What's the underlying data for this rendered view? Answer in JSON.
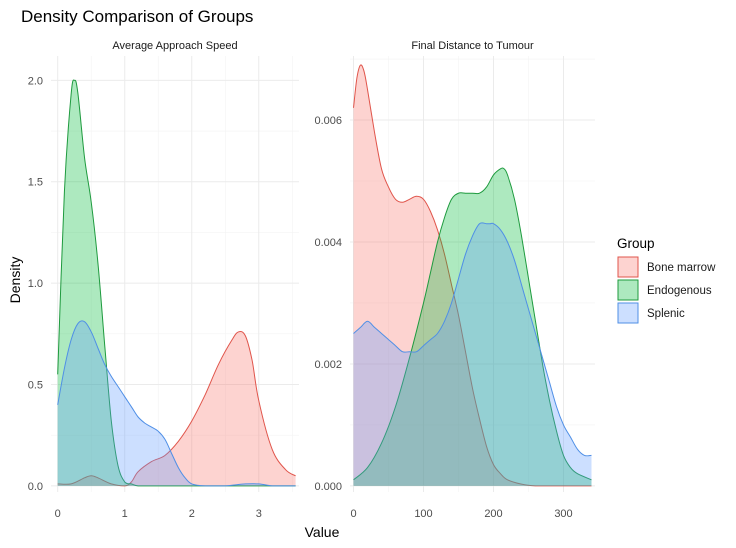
{
  "chart_data": {
    "type": "area",
    "title": "Density Comparison of Groups",
    "xlabel": "Value",
    "ylabel": "Density",
    "legend": {
      "title": "Group",
      "position": "right",
      "entries": [
        {
          "name": "Bone marrow",
          "fill": "#f8766d",
          "line": "#e0554b"
        },
        {
          "name": "Endogenous",
          "fill": "#00ba38",
          "line": "#1e9a3e"
        },
        {
          "name": "Splenic",
          "fill": "#619cff",
          "line": "#4f8fe6"
        }
      ]
    },
    "facets": [
      {
        "strip": "Average Approach Speed",
        "xlim": [
          -0.1,
          3.6
        ],
        "ylim": [
          -0.03,
          2.12
        ],
        "x_ticks": [
          0,
          1,
          2,
          3
        ],
        "x_tick_labels": [
          "0",
          "1",
          "2",
          "3"
        ],
        "y_ticks": [
          0,
          0.5,
          1.0,
          1.5,
          2.0
        ],
        "y_tick_labels": [
          "0.0",
          "0.5",
          "1.0",
          "1.5",
          "2.0"
        ],
        "series": [
          {
            "name": "Bone marrow",
            "x": [
              0,
              0.2,
              0.4,
              0.5,
              0.6,
              0.8,
              1.0,
              1.1,
              1.2,
              1.4,
              1.6,
              1.8,
              2.0,
              2.2,
              2.4,
              2.6,
              2.7,
              2.8,
              2.9,
              3.0,
              3.2,
              3.4,
              3.55
            ],
            "y": [
              0.01,
              0.01,
              0.04,
              0.05,
              0.04,
              0.01,
              0.0,
              0.02,
              0.07,
              0.12,
              0.15,
              0.22,
              0.32,
              0.45,
              0.6,
              0.72,
              0.76,
              0.74,
              0.62,
              0.42,
              0.18,
              0.08,
              0.05
            ]
          },
          {
            "name": "Endogenous",
            "x": [
              0,
              0.1,
              0.2,
              0.25,
              0.3,
              0.4,
              0.5,
              0.6,
              0.7,
              0.8,
              0.9,
              1.0,
              1.1,
              1.2,
              1.4,
              1.6,
              1.8,
              2.0,
              2.5,
              3.0,
              3.55
            ],
            "y": [
              0.55,
              1.45,
              1.93,
              2.0,
              1.94,
              1.62,
              1.4,
              1.1,
              0.7,
              0.32,
              0.1,
              0.02,
              0.01,
              0.0,
              0.0,
              0.0,
              0.0,
              0.0,
              0.0,
              0.0,
              0.0
            ]
          },
          {
            "name": "Splenic",
            "x": [
              0,
              0.1,
              0.2,
              0.3,
              0.4,
              0.5,
              0.6,
              0.7,
              0.8,
              0.9,
              1.0,
              1.1,
              1.2,
              1.3,
              1.4,
              1.5,
              1.6,
              1.7,
              1.8,
              1.9,
              2.0,
              2.2,
              2.5,
              2.8,
              3.0,
              3.2,
              3.4,
              3.55
            ],
            "y": [
              0.4,
              0.58,
              0.72,
              0.8,
              0.81,
              0.76,
              0.68,
              0.6,
              0.54,
              0.49,
              0.44,
              0.39,
              0.34,
              0.31,
              0.29,
              0.27,
              0.23,
              0.16,
              0.09,
              0.04,
              0.01,
              0.0,
              0.0,
              0.01,
              0.01,
              0.0,
              0.0,
              0.0
            ]
          }
        ]
      },
      {
        "strip": "Final Distance to Tumour",
        "xlim": [
          -5,
          345
        ],
        "ylim": [
          -0.0001,
          0.00705
        ],
        "x_ticks": [
          0,
          100,
          200,
          300
        ],
        "x_tick_labels": [
          "0",
          "100",
          "200",
          "300"
        ],
        "y_ticks": [
          0,
          0.002,
          0.004,
          0.006
        ],
        "y_tick_labels": [
          "0.000",
          "0.002",
          "0.004",
          "0.006"
        ],
        "series": [
          {
            "name": "Bone marrow",
            "x": [
              0,
              5,
              10,
              15,
              20,
              30,
              40,
              50,
              60,
              70,
              80,
              90,
              100,
              110,
              120,
              130,
              140,
              150,
              160,
              170,
              180,
              190,
              200,
              210,
              220,
              240,
              260,
              280,
              300,
              320,
              340
            ],
            "y": [
              0.0062,
              0.0067,
              0.0069,
              0.0068,
              0.0065,
              0.0058,
              0.0052,
              0.0049,
              0.0047,
              0.00465,
              0.0047,
              0.00475,
              0.0047,
              0.0045,
              0.0042,
              0.0038,
              0.0033,
              0.0028,
              0.0022,
              0.0016,
              0.0011,
              0.00065,
              0.00035,
              0.0002,
              0.0001,
              3e-05,
              0.0,
              0.0,
              0.0,
              0.0,
              0.0
            ]
          },
          {
            "name": "Endogenous",
            "x": [
              0,
              20,
              40,
              60,
              80,
              100,
              110,
              120,
              130,
              140,
              150,
              160,
              170,
              180,
              190,
              200,
              210,
              215,
              220,
              230,
              240,
              250,
              260,
              270,
              280,
              290,
              300,
              310,
              320,
              340
            ],
            "y": [
              0.0001,
              0.0003,
              0.0007,
              0.0013,
              0.0021,
              0.003,
              0.0035,
              0.004,
              0.0044,
              0.0047,
              0.0048,
              0.0048,
              0.0048,
              0.0048,
              0.0049,
              0.0051,
              0.0052,
              0.0052,
              0.0051,
              0.0047,
              0.0041,
              0.0034,
              0.0027,
              0.002,
              0.0014,
              0.0009,
              0.0005,
              0.0003,
              0.0002,
              0.0001
            ]
          },
          {
            "name": "Splenic",
            "x": [
              0,
              10,
              20,
              30,
              40,
              50,
              60,
              70,
              80,
              90,
              100,
              110,
              120,
              130,
              140,
              150,
              160,
              170,
              180,
              190,
              195,
              200,
              210,
              220,
              230,
              240,
              250,
              260,
              270,
              280,
              290,
              300,
              310,
              320,
              330,
              340
            ],
            "y": [
              0.0025,
              0.0026,
              0.0027,
              0.0026,
              0.0025,
              0.0024,
              0.0023,
              0.0022,
              0.0022,
              0.0022,
              0.0023,
              0.0024,
              0.0025,
              0.0027,
              0.003,
              0.0034,
              0.0038,
              0.0041,
              0.0043,
              0.0043,
              0.0043,
              0.0043,
              0.0042,
              0.004,
              0.0037,
              0.0033,
              0.0029,
              0.0025,
              0.0021,
              0.0017,
              0.0013,
              0.001,
              0.0008,
              0.0006,
              0.0005,
              0.0005
            ]
          }
        ]
      }
    ]
  }
}
